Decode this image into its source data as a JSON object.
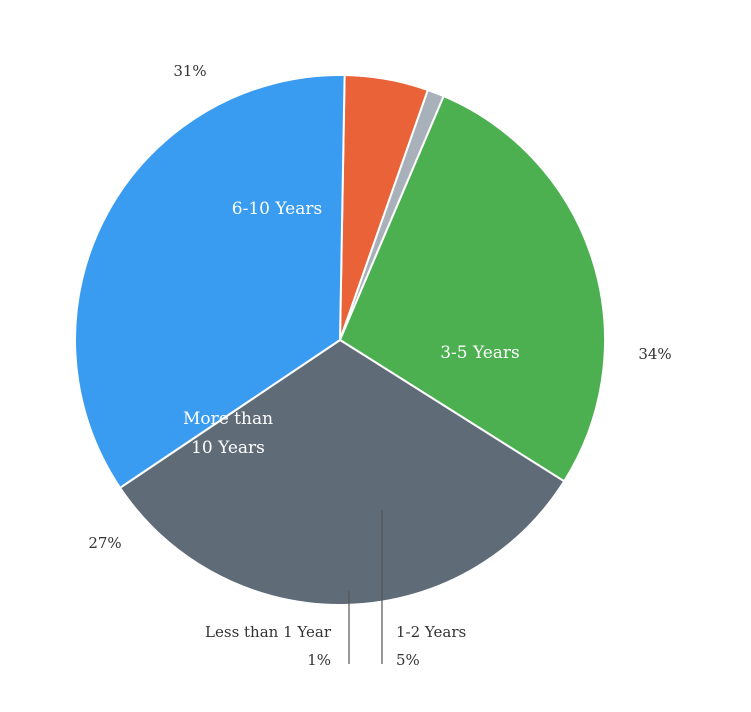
{
  "chart_data": {
    "type": "pie",
    "title": "",
    "start_angle_deg": 271,
    "direction": "clockwise",
    "slices": [
      {
        "label": "1-2 Years",
        "value": 5,
        "value_label": "5%",
        "color": "#EA6237"
      },
      {
        "label": "Less than 1 Year",
        "value": 1,
        "value_label": "1%",
        "color": "#A8B0BA"
      },
      {
        "label": "More than 10 Years",
        "label_lines": [
          "More than",
          "10 Years"
        ],
        "value": 27,
        "value_label": "27%",
        "color": "#4CAF50"
      },
      {
        "label": "6-10 Years",
        "value": 31,
        "value_label": "31%",
        "color": "#5F6B77"
      },
      {
        "label": "3-5 Years",
        "value": 34,
        "value_label": "34%",
        "color": "#3A9CF0"
      }
    ]
  }
}
